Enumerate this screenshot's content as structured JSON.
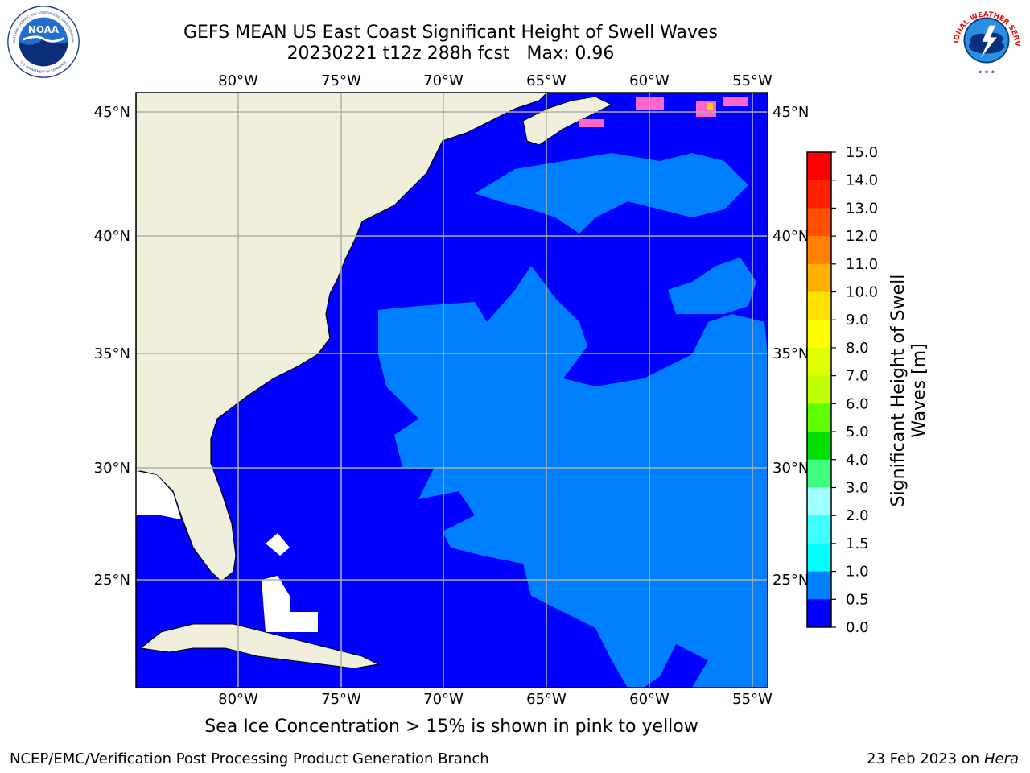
{
  "title": {
    "line1": "GEFS MEAN US East Coast Significant Height of Swell Waves",
    "run": "20230221 t12z 288h fcst",
    "max_label": "Max: 0.96"
  },
  "logos": {
    "left": "noaa-logo",
    "right": "nws-logo",
    "noaa_text": "NOAA",
    "noaa_ring_top": "NATIONAL OCEANIC AND ATMOSPHERIC ADMINISTRATION",
    "noaa_ring_bottom": "U.S. DEPARTMENT OF COMMERCE",
    "nws_ring": "NATIONAL WEATHER SERVICE"
  },
  "map": {
    "lon_labels": [
      "80°W",
      "75°W",
      "70°W",
      "65°W",
      "60°W",
      "55°W"
    ],
    "lat_labels": [
      "45°N",
      "40°N",
      "35°N",
      "30°N",
      "25°N"
    ],
    "colors": {
      "ocean_low": "#0000ff",
      "ocean_mid": "#0080ff",
      "land": "#efefdc",
      "grid": "#b0b0b0",
      "ice": "#ff66cc"
    }
  },
  "colorbar": {
    "label_line1": "Significant Height of Swell",
    "label_line2": "Waves [m]",
    "ticks": [
      "15.0",
      "14.0",
      "13.0",
      "12.0",
      "11.0",
      "10.0",
      "9.0",
      "8.0",
      "7.0",
      "6.0",
      "5.0",
      "4.0",
      "3.0",
      "2.0",
      "1.5",
      "1.0",
      "0.5",
      "0.0"
    ],
    "colors": [
      "#ff0000",
      "#ff2000",
      "#ff5000",
      "#ff8000",
      "#ffb000",
      "#ffe000",
      "#ffff00",
      "#e0ff00",
      "#c0ff00",
      "#60ff00",
      "#00e000",
      "#40ff80",
      "#a0ffff",
      "#40ffff",
      "#00ffff",
      "#0080ff",
      "#0000ff"
    ]
  },
  "notes": {
    "ice": "Sea Ice Concentration > 15% is shown in pink to yellow",
    "credit": "NCEP/EMC/Verification Post Processing Product Generation Branch",
    "date": "23 Feb 2023 on",
    "machine": "Hera"
  }
}
